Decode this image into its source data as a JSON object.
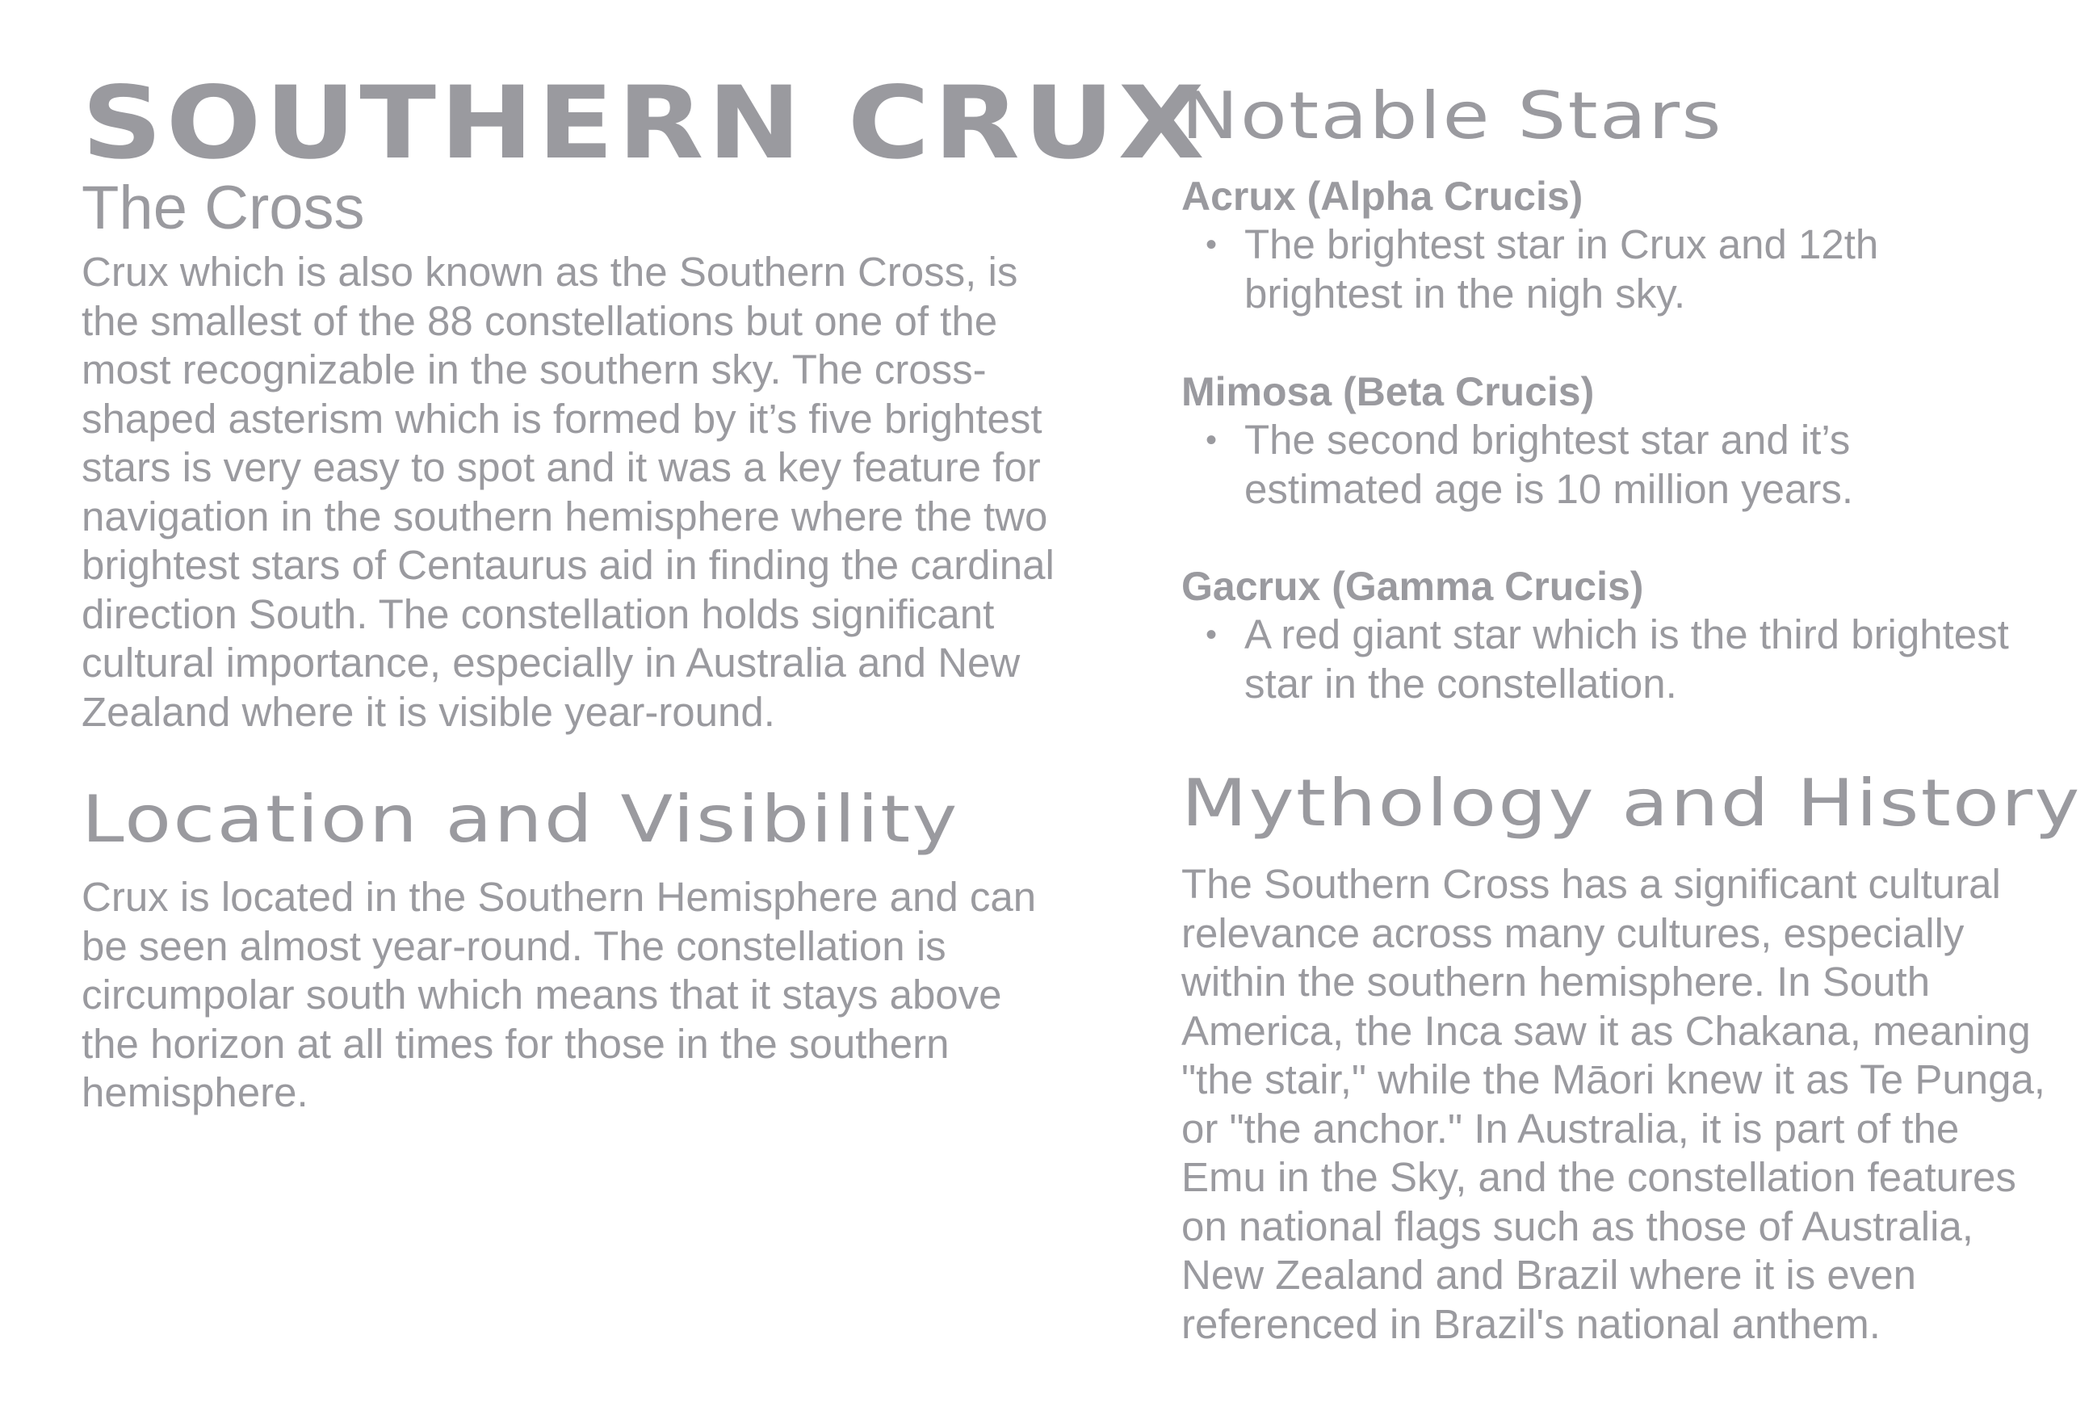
{
  "left": {
    "title": "SOUTHERN CRUX",
    "subtitle": "The Cross",
    "intro_lines": [
      "Crux which is also known as the Southern Cross, is",
      "the smallest of the 88 constellations but one of the",
      "most recognizable in the southern sky. The cross-",
      "shaped asterism  which is formed by it’s five brightest",
      "stars is very easy to spot and it was a key feature for",
      "navigation in the southern hemisphere where the two",
      "brightest stars of Centaurus aid in finding the cardinal",
      "direction South. The constellation holds significant",
      "cultural importance, especially in Australia and New",
      "Zealand where it is visible year-round."
    ],
    "location": {
      "heading": "Location and Visibility",
      "lines": [
        "Crux is located in the Southern Hemisphere and can",
        "be seen almost year-round. The constellation is",
        "circumpolar south which means that it stays above",
        "the horizon at all times for those in the southern",
        "hemisphere."
      ]
    }
  },
  "right": {
    "notable": {
      "heading": "Notable Stars",
      "bullet": "•",
      "stars": [
        {
          "name": "Acrux (Alpha Crucis)",
          "lines": [
            "The brightest star in Crux and 12th",
            "brightest in the nigh sky."
          ]
        },
        {
          "name": "Mimosa (Beta Crucis)",
          "lines": [
            "The second brightest star and it’s",
            "estimated age is 10 million years."
          ]
        },
        {
          "name": "Gacrux (Gamma Crucis)",
          "lines": [
            "A red giant star which is the third brightest",
            "star in the constellation."
          ]
        }
      ]
    },
    "mythology": {
      "heading": "Mythology and History",
      "lines": [
        "The Southern Cross has a significant cultural",
        "relevance across many cultures, especially",
        "within the southern hemisphere. In South",
        "America, the Inca saw it as Chakana, meaning",
        "\"the stair,\" while the Māori knew it as Te Punga,",
        "or \"the anchor.\" In Australia, it is part of the",
        "Emu in the Sky, and the constellation features",
        "on national flags such as those of Australia,",
        "New Zealand and Brazil where it is even",
        "referenced in Brazil's national anthem."
      ]
    }
  }
}
